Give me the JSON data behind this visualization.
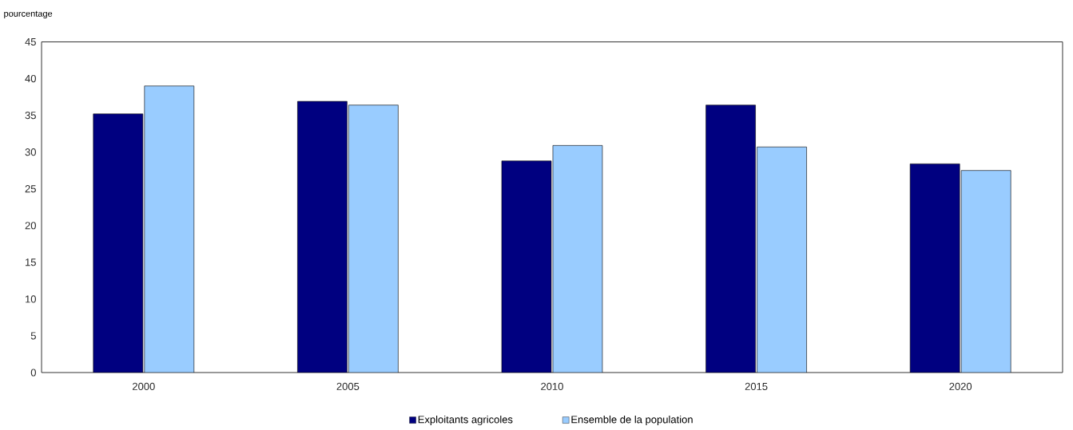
{
  "chart_data": {
    "type": "bar",
    "ylabel": "pourcentage",
    "categories": [
      "2000",
      "2005",
      "2010",
      "2015",
      "2020"
    ],
    "series": [
      {
        "name": "Exploitants agricoles",
        "color": "#000080",
        "values": [
          35.2,
          36.9,
          28.8,
          36.4,
          28.4
        ]
      },
      {
        "name": "Ensemble de la population",
        "color": "#99ccff",
        "values": [
          39.0,
          36.4,
          30.9,
          30.7,
          27.5
        ]
      }
    ],
    "ylim": [
      0,
      45
    ],
    "yticks": [
      0,
      5,
      10,
      15,
      20,
      25,
      30,
      35,
      40,
      45
    ],
    "grid": false,
    "legend": "bottom"
  }
}
